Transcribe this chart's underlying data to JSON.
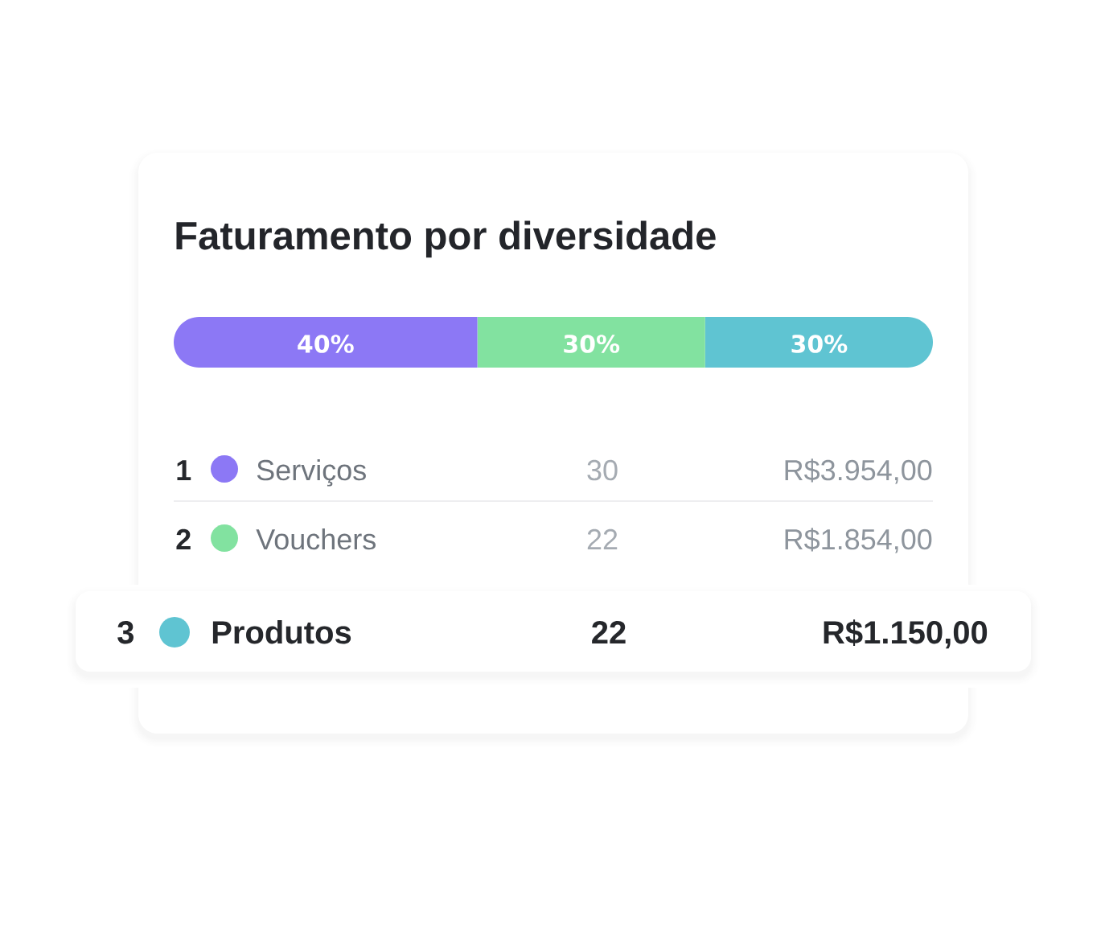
{
  "chart_data": {
    "type": "bar",
    "orientation": "horizontal",
    "stacked": true,
    "title": "Faturamento por diversidade",
    "categories": [
      null
    ],
    "series": [
      {
        "name": "Serviços",
        "color": "#8c78f5",
        "values": [
          40
        ],
        "value_labels": [
          "40%"
        ]
      },
      {
        "name": "Vouchers",
        "color": "#82e2a0",
        "values": [
          30
        ],
        "value_labels": [
          "30%"
        ]
      },
      {
        "name": "Produtos",
        "color": "#5fc4d2",
        "values": [
          30
        ],
        "value_labels": [
          "30%"
        ]
      }
    ],
    "legend": "bottom",
    "annotations": [
      "1",
      "30",
      "R$3.954,00",
      "2",
      "22",
      "R$1.854,00",
      "3",
      "22",
      "R$1.150,00"
    ]
  }
}
